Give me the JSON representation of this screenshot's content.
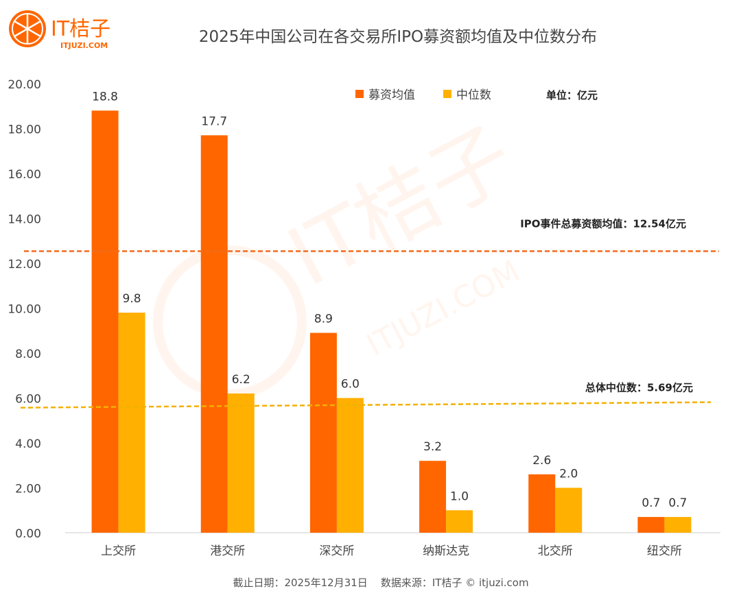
{
  "logo": {
    "name": "IT桔子",
    "domain": "ITJUZI.COM"
  },
  "watermark": {
    "name": "IT桔子",
    "domain": "ITJUZI.COM"
  },
  "footer": "截止日期：2025年12月31日    数据来源：IT桔子 © itjuzi.com",
  "chart_data": {
    "type": "bar",
    "title": "2025年中国公司在各交易所IPO募资额均值及中位数分布",
    "unit_label": "单位：亿元",
    "categories": [
      "上交所",
      "港交所",
      "深交所",
      "纳斯达克",
      "北交所",
      "纽交所"
    ],
    "series": [
      {
        "name": "募资均值",
        "color": "#FF6600",
        "values": [
          18.8,
          17.7,
          8.9,
          3.2,
          2.6,
          0.7
        ]
      },
      {
        "name": "中位数",
        "color": "#FFB000",
        "values": [
          9.8,
          6.2,
          6.0,
          1.0,
          2.0,
          0.7
        ]
      }
    ],
    "ylim": [
      0,
      20
    ],
    "yticks": [
      "0.00",
      "2.00",
      "4.00",
      "6.00",
      "8.00",
      "10.00",
      "12.00",
      "14.00",
      "16.00",
      "18.00",
      "20.00"
    ],
    "reference_lines": [
      {
        "label": "IPO事件总募资额均值：12.54亿元",
        "value": 12.54,
        "color": "#F26B1D",
        "style": "dashed"
      },
      {
        "label": "总体中位数：5.69亿元",
        "value": 5.69,
        "color": "#F2B100",
        "style": "dashed"
      }
    ],
    "grid": false,
    "legend": "top-right"
  }
}
